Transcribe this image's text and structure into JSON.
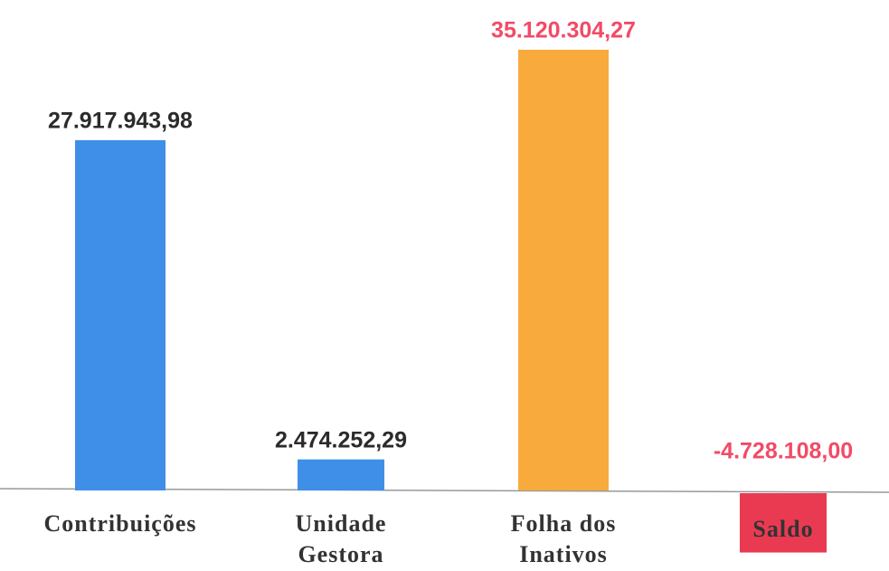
{
  "chart_data": {
    "type": "bar",
    "categories": [
      "Contribuições",
      "Unidade\nGestora",
      "Folha dos\nInativos",
      "Saldo"
    ],
    "values": [
      27917943.98,
      2474252.29,
      35120304.27,
      -4728108.0
    ],
    "value_labels": [
      "27.917.943,98",
      "2.474.252,29",
      "35.120.304,27",
      "-4.728.108,00"
    ],
    "colors": [
      "#3f8fe8",
      "#3f8fe8",
      "#f8aa3c",
      "#ea3a52"
    ],
    "label_colors": [
      "#2b2b2b",
      "#2b2b2b",
      "#f24a66",
      "#f24a66"
    ]
  }
}
